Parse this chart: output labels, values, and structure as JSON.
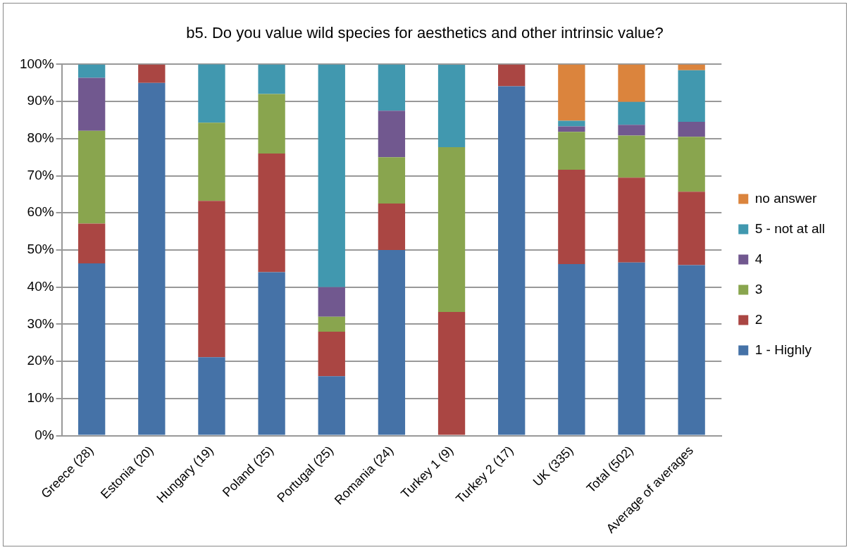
{
  "chart_data": {
    "type": "bar",
    "title": "b5. Do you value wild species for aesthetics and other intrinsic value?",
    "categories": [
      "Greece (28)",
      "Estonia (20)",
      "Hungary (19)",
      "Poland (25)",
      "Portugal (25)",
      "Romania (24)",
      "Turkey 1 (9)",
      "Turkey 2 (17)",
      "UK (335)",
      "Total (502)",
      "Average of averages"
    ],
    "stacked": true,
    "ylim": [
      0,
      100
    ],
    "yticks": [
      {
        "value": 0,
        "label": "0%"
      },
      {
        "value": 10,
        "label": "10%"
      },
      {
        "value": 20,
        "label": "20%"
      },
      {
        "value": 30,
        "label": "30%"
      },
      {
        "value": 40,
        "label": "40%"
      },
      {
        "value": 50,
        "label": "50%"
      },
      {
        "value": 60,
        "label": "60%"
      },
      {
        "value": 70,
        "label": "70%"
      },
      {
        "value": 80,
        "label": "80%"
      },
      {
        "value": 90,
        "label": "90%"
      },
      {
        "value": 100,
        "label": "100%"
      }
    ],
    "grid": "y",
    "legend": "right",
    "series": [
      {
        "name": "1 - Highly",
        "color": "#4572a7",
        "values": [
          46.4,
          95,
          21.1,
          44,
          16,
          50,
          0,
          94.1,
          46.2,
          46.6,
          45.9
        ]
      },
      {
        "name": "2",
        "color": "#aa4643",
        "values": [
          10.7,
          5,
          42.1,
          32,
          12,
          12.5,
          33.3,
          5.9,
          25.4,
          22.9,
          19.8
        ]
      },
      {
        "name": "3",
        "color": "#89a54e",
        "values": [
          25,
          0,
          21.1,
          16,
          4,
          12.5,
          44.4,
          0,
          10.2,
          11.3,
          14.8
        ]
      },
      {
        "name": "4",
        "color": "#71588f",
        "values": [
          14.3,
          0,
          0,
          0,
          8,
          12.5,
          0,
          0,
          1.5,
          2.9,
          4
        ]
      },
      {
        "name": "5 - not at all",
        "color": "#4198af",
        "values": [
          3.6,
          0,
          15.8,
          8,
          60,
          12.5,
          22.2,
          0,
          1.5,
          6.2,
          13.9
        ]
      },
      {
        "name": "no answer",
        "color": "#db843d",
        "values": [
          0,
          0,
          0,
          0,
          0,
          0,
          0,
          0,
          15.2,
          10.1,
          1.6
        ]
      }
    ]
  }
}
